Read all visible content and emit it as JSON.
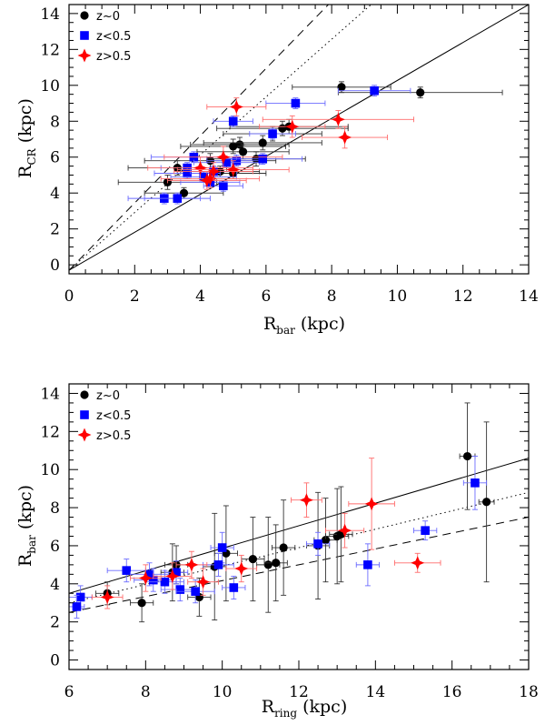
{
  "chart_data": [
    {
      "type": "scatter",
      "id": "top",
      "xlabel_main": "R",
      "xlabel_sub": "bar",
      "xlabel_unit": " (kpc)",
      "ylabel_main": "R",
      "ylabel_sub": "CR",
      "ylabel_unit": " (kpc)",
      "xlim": [
        0,
        14
      ],
      "ylim": [
        -0.5,
        14.5
      ],
      "xticks": [
        0,
        2,
        4,
        6,
        8,
        10,
        12,
        14
      ],
      "yticks": [
        0,
        2,
        4,
        6,
        8,
        10,
        12,
        14
      ],
      "legend": [
        "z~0",
        "z<0.5",
        "z>0.5"
      ],
      "lines": [
        {
          "name": "solid",
          "style": "solid",
          "x": [
            0,
            14
          ],
          "y": [
            -0.3,
            14.5
          ]
        },
        {
          "name": "dotted",
          "style": "dotted",
          "x": [
            0,
            9.2
          ],
          "y": [
            -0.3,
            14.5
          ]
        },
        {
          "name": "dashed",
          "style": "dashed",
          "x": [
            0,
            7.9
          ],
          "y": [
            -0.3,
            14.5
          ]
        }
      ],
      "series": [
        {
          "name": "z~0",
          "marker": "circle",
          "color": "#000000",
          "points": [
            [
              8.3,
              9.9,
              1.5,
              0.3
            ],
            [
              10.7,
              9.6,
              2.5,
              0.3
            ],
            [
              6.5,
              7.6,
              2.0,
              0.4
            ],
            [
              6.7,
              7.7,
              1.8,
              0.4
            ],
            [
              6.2,
              7.3,
              1.5,
              0.4
            ],
            [
              5.2,
              6.7,
              1.5,
              0.4
            ],
            [
              5.0,
              6.6,
              1.6,
              0.4
            ],
            [
              5.9,
              6.8,
              1.8,
              0.4
            ],
            [
              5.3,
              6.3,
              1.4,
              0.4
            ],
            [
              4.3,
              5.8,
              2.0,
              0.4
            ],
            [
              5.7,
              5.9,
              1.5,
              0.4
            ],
            [
              3.3,
              5.4,
              1.5,
              0.4
            ],
            [
              3.0,
              4.6,
              1.5,
              0.4
            ],
            [
              3.5,
              4.0,
              1.2,
              0.3
            ],
            [
              5.0,
              5.1,
              1.0,
              0.3
            ],
            [
              4.6,
              5.2,
              1.2,
              0.3
            ]
          ]
        },
        {
          "name": "z<0.5",
          "marker": "square",
          "color": "#0000ff",
          "points": [
            [
              9.3,
              9.7,
              1.1,
              0.3
            ],
            [
              6.9,
              9.0,
              0.9,
              0.3
            ],
            [
              5.0,
              8.0,
              0.6,
              0.3
            ],
            [
              6.2,
              7.3,
              0.7,
              0.3
            ],
            [
              5.1,
              5.8,
              0.9,
              0.3
            ],
            [
              3.8,
              6.0,
              1.3,
              0.3
            ],
            [
              4.8,
              5.7,
              1.0,
              0.3
            ],
            [
              3.6,
              5.4,
              0.8,
              0.3
            ],
            [
              3.6,
              5.1,
              1.0,
              0.3
            ],
            [
              4.4,
              5.2,
              0.7,
              0.3
            ],
            [
              4.1,
              4.9,
              1.0,
              0.3
            ],
            [
              4.7,
              4.4,
              0.6,
              0.3
            ],
            [
              2.9,
              3.7,
              1.1,
              0.3
            ],
            [
              3.3,
              3.7,
              1.0,
              0.3
            ],
            [
              5.9,
              5.9,
              1.2,
              0.3
            ],
            [
              4.3,
              4.6,
              0.9,
              0.3
            ]
          ]
        },
        {
          "name": "z>0.5",
          "marker": "star",
          "color": "#ff0000",
          "points": [
            [
              5.1,
              8.8,
              0.9,
              0.5
            ],
            [
              8.2,
              8.1,
              2.3,
              0.5
            ],
            [
              6.8,
              7.7,
              1.0,
              0.6
            ],
            [
              8.4,
              7.1,
              1.3,
              0.6
            ],
            [
              4.7,
              6.0,
              1.8,
              0.6
            ],
            [
              4.0,
              5.4,
              1.6,
              0.6
            ],
            [
              5.0,
              5.3,
              1.7,
              0.5
            ],
            [
              4.3,
              4.8,
              1.5,
              0.5
            ],
            [
              4.4,
              5.2,
              1.2,
              0.5
            ],
            [
              4.2,
              4.7,
              1.2,
              0.5
            ]
          ]
        }
      ]
    },
    {
      "type": "scatter",
      "id": "bottom",
      "xlabel_main": "R",
      "xlabel_sub": "ring",
      "xlabel_unit": " (kpc)",
      "ylabel_main": "R",
      "ylabel_sub": "bar",
      "ylabel_unit": " (kpc)",
      "xlim": [
        6,
        18
      ],
      "ylim": [
        -0.5,
        14.5
      ],
      "xticks": [
        6,
        8,
        10,
        12,
        14,
        16,
        18
      ],
      "yticks": [
        0,
        2,
        4,
        6,
        8,
        10,
        12,
        14
      ],
      "legend": [
        "z~0",
        "z<0.5",
        "z>0.5"
      ],
      "lines": [
        {
          "name": "solid",
          "style": "solid",
          "x": [
            6,
            18
          ],
          "y": [
            3.5,
            10.6
          ]
        },
        {
          "name": "dotted",
          "style": "dotted",
          "x": [
            6,
            18
          ],
          "y": [
            3.0,
            8.8
          ]
        },
        {
          "name": "dashed",
          "style": "dashed",
          "x": [
            6,
            18
          ],
          "y": [
            2.5,
            7.5
          ]
        }
      ],
      "series": [
        {
          "name": "z~0",
          "marker": "circle",
          "color": "#000000",
          "points": [
            [
              16.4,
              10.7,
              0.2,
              2.8
            ],
            [
              16.9,
              8.3,
              0.2,
              4.2
            ],
            [
              7.0,
              3.5,
              0.3,
              0.6
            ],
            [
              7.9,
              3.0,
              0.3,
              1.0
            ],
            [
              8.8,
              5.0,
              0.3,
              1.0
            ],
            [
              8.7,
              4.6,
              0.3,
              1.5
            ],
            [
              9.4,
              3.3,
              0.3,
              1.0
            ],
            [
              9.8,
              4.9,
              0.3,
              2.8
            ],
            [
              10.1,
              5.6,
              0.3,
              2.5
            ],
            [
              10.8,
              5.3,
              0.3,
              2.2
            ],
            [
              11.2,
              5.0,
              0.3,
              2.5
            ],
            [
              11.4,
              5.1,
              0.3,
              2.0
            ],
            [
              11.6,
              5.9,
              0.3,
              2.5
            ],
            [
              12.5,
              6.0,
              0.3,
              2.8
            ],
            [
              12.7,
              6.3,
              0.3,
              2.2
            ],
            [
              13.0,
              6.5,
              0.3,
              2.5
            ],
            [
              13.1,
              6.6,
              0.3,
              2.5
            ]
          ]
        },
        {
          "name": "z<0.5",
          "marker": "square",
          "color": "#0000ff",
          "points": [
            [
              16.6,
              9.3,
              0.3,
              1.4
            ],
            [
              15.3,
              6.8,
              0.3,
              0.5
            ],
            [
              13.8,
              5.0,
              0.3,
              1.1
            ],
            [
              12.5,
              6.1,
              0.3,
              0.6
            ],
            [
              10.0,
              5.9,
              0.3,
              0.8
            ],
            [
              9.9,
              5.0,
              0.4,
              0.6
            ],
            [
              10.3,
              3.8,
              0.3,
              0.6
            ],
            [
              7.5,
              4.7,
              0.5,
              0.6
            ],
            [
              8.1,
              4.5,
              0.5,
              0.6
            ],
            [
              8.2,
              4.2,
              0.5,
              0.6
            ],
            [
              8.5,
              4.1,
              0.5,
              0.6
            ],
            [
              8.9,
              3.7,
              0.5,
              0.6
            ],
            [
              9.3,
              3.6,
              0.5,
              0.6
            ],
            [
              6.3,
              3.3,
              0.3,
              0.6
            ],
            [
              6.2,
              2.8,
              0.2,
              0.6
            ],
            [
              8.8,
              4.6,
              0.3,
              0.6
            ]
          ]
        },
        {
          "name": "z>0.5",
          "marker": "star",
          "color": "#ff0000",
          "points": [
            [
              12.2,
              8.4,
              0.4,
              0.9
            ],
            [
              13.9,
              8.2,
              0.6,
              2.4
            ],
            [
              15.1,
              5.1,
              0.6,
              0.5
            ],
            [
              13.2,
              6.8,
              0.5,
              0.9
            ],
            [
              9.2,
              5.0,
              0.4,
              0.7
            ],
            [
              10.5,
              4.8,
              0.4,
              0.7
            ],
            [
              9.5,
              4.1,
              0.4,
              0.7
            ],
            [
              8.0,
              4.3,
              0.4,
              0.7
            ],
            [
              8.7,
              4.4,
              0.5,
              0.7
            ],
            [
              7.0,
              3.3,
              0.4,
              0.6
            ]
          ]
        }
      ]
    }
  ]
}
